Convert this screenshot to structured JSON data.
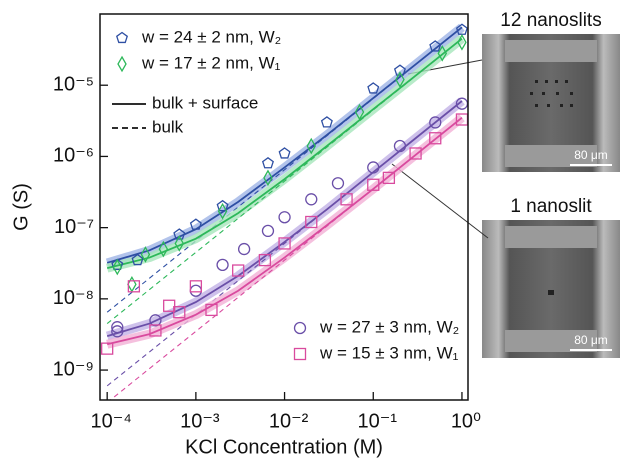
{
  "chart_data": {
    "type": "scatter",
    "x_label": "KCl Concentration (M)",
    "y_label": "G (S)",
    "log_x": true,
    "log_y": true,
    "xlim": [
      8.3e-05,
      1.17
    ],
    "ylim": [
      3.8e-10,
      0.0001
    ],
    "xticks": [
      {
        "value": 0.0001,
        "label": "10⁻⁴"
      },
      {
        "value": 0.001,
        "label": "10⁻³"
      },
      {
        "value": 0.01,
        "label": "10⁻²"
      },
      {
        "value": 0.1,
        "label": "10⁻¹"
      },
      {
        "value": 1,
        "label": "10⁰"
      }
    ],
    "yticks": [
      {
        "value": 1e-09,
        "label": "10⁻⁹"
      },
      {
        "value": 1e-08,
        "label": "10⁻⁸"
      },
      {
        "value": 1e-07,
        "label": "10⁻⁷"
      },
      {
        "value": 1e-06,
        "label": "10⁻⁶"
      },
      {
        "value": 1e-05,
        "label": "10⁻⁵"
      }
    ],
    "fit_label": "bulk + surface",
    "bulk_label": "bulk",
    "fit_x": [
      0.0001,
      0.0003,
      0.001,
      0.003,
      0.01,
      0.03,
      0.1,
      0.3,
      1
    ],
    "series": [
      {
        "name": "w = 24 ± 2 nm, W₂",
        "color": "#2e4fa3",
        "band_color": "#9fb4e6",
        "marker": "pentagon",
        "legend": "upper left",
        "x": [
          0.00013,
          0.00022,
          0.00065,
          0.001,
          0.002,
          0.0065,
          0.01,
          0.03,
          0.1,
          0.2,
          0.5,
          1
        ],
        "values": [
          3e-08,
          3.5e-08,
          8e-08,
          1.1e-07,
          2e-07,
          8e-07,
          1.1e-06,
          3e-06,
          9e-06,
          1.6e-05,
          3.5e-05,
          6e-05
        ],
        "fit": [
          3.2e-08,
          4.8e-08,
          9.5e-08,
          2.3e-07,
          7e-07,
          2e-06,
          6.6e-06,
          1.96e-05,
          6.5e-05
        ],
        "bulk": [
          6.5e-09,
          1.95e-08,
          6.5e-08,
          1.95e-07,
          6.5e-07,
          1.95e-06,
          6.5e-06,
          1.95e-05,
          6.5e-05
        ]
      },
      {
        "name": "w = 17 ± 2 nm, W₁",
        "color": "#2db85a",
        "band_color": "#a6e6bb",
        "marker": "diamond",
        "legend": "upper left",
        "x": [
          0.00013,
          0.00019,
          0.00027,
          0.00043,
          0.00065,
          0.002,
          0.0065,
          0.02,
          0.07,
          0.2,
          0.6,
          1
        ],
        "values": [
          2.8e-08,
          1.6e-08,
          4.2e-08,
          5e-08,
          6e-08,
          1.7e-07,
          5e-07,
          1.4e-06,
          4.2e-06,
          1.2e-05,
          2.8e-05,
          4e-05
        ],
        "fit": [
          2.7e-08,
          3.8e-08,
          7e-08,
          1.6e-07,
          4.8e-07,
          1.4e-06,
          4.6e-06,
          1.36e-05,
          4.5e-05
        ],
        "bulk": [
          4.5e-09,
          1.35e-08,
          4.5e-08,
          1.35e-07,
          4.5e-07,
          1.35e-06,
          4.5e-06,
          1.35e-05,
          4.5e-05
        ]
      },
      {
        "name": "w = 27 ± 3 nm, W₂",
        "color": "#6a4fa8",
        "band_color": "#c2b2e6",
        "marker": "circle",
        "legend": "lower right",
        "x": [
          0.00013,
          0.00013,
          0.00035,
          0.001,
          0.002,
          0.0035,
          0.0065,
          0.01,
          0.02,
          0.04,
          0.1,
          0.2,
          0.5,
          1
        ],
        "values": [
          4e-09,
          3.5e-09,
          5e-09,
          1.3e-08,
          3e-08,
          5e-08,
          9e-08,
          1.4e-07,
          2.5e-07,
          4.2e-07,
          7e-07,
          1.4e-06,
          3e-06,
          5.5e-06
        ],
        "fit": [
          3e-09,
          4.5e-09,
          9e-09,
          2.1e-08,
          6.3e-08,
          1.8e-07,
          6e-07,
          1.8e-06,
          6e-06
        ],
        "bulk": [
          6e-10,
          1.8e-09,
          6e-09,
          1.8e-08,
          6e-08,
          1.8e-07,
          6e-07,
          1.8e-06,
          6e-06
        ]
      },
      {
        "name": "w = 15 ± 3 nm, W₁",
        "color": "#d94a9e",
        "band_color": "#f2b0d6",
        "marker": "square",
        "legend": "lower right",
        "x": [
          0.0001,
          0.0002,
          0.00035,
          0.0005,
          0.00065,
          0.001,
          0.0015,
          0.003,
          0.006,
          0.01,
          0.02,
          0.05,
          0.1,
          0.15,
          0.3,
          0.5,
          1
        ],
        "values": [
          2e-09,
          1.5e-08,
          3.6e-09,
          8e-09,
          6.5e-09,
          1.5e-08,
          7e-09,
          2.5e-08,
          3.5e-08,
          6e-08,
          1.2e-07,
          2.5e-07,
          4e-07,
          5e-07,
          1.1e-06,
          1.8e-06,
          3.3e-06
        ],
        "fit": [
          2.3e-09,
          3.2e-09,
          6e-09,
          1.3e-08,
          3.8e-08,
          1.08e-07,
          3.5e-07,
          1.05e-06,
          3.5e-06
        ],
        "bulk": [
          3.5e-10,
          1.05e-09,
          3.5e-09,
          1.05e-08,
          3.5e-08,
          1.05e-07,
          3.5e-07,
          1.05e-06,
          3.5e-06
        ]
      }
    ],
    "images": [
      {
        "title": "12 nanoslits",
        "scale": "80 μm"
      },
      {
        "title": "1 nanoslit",
        "scale": "80 μm"
      }
    ]
  }
}
